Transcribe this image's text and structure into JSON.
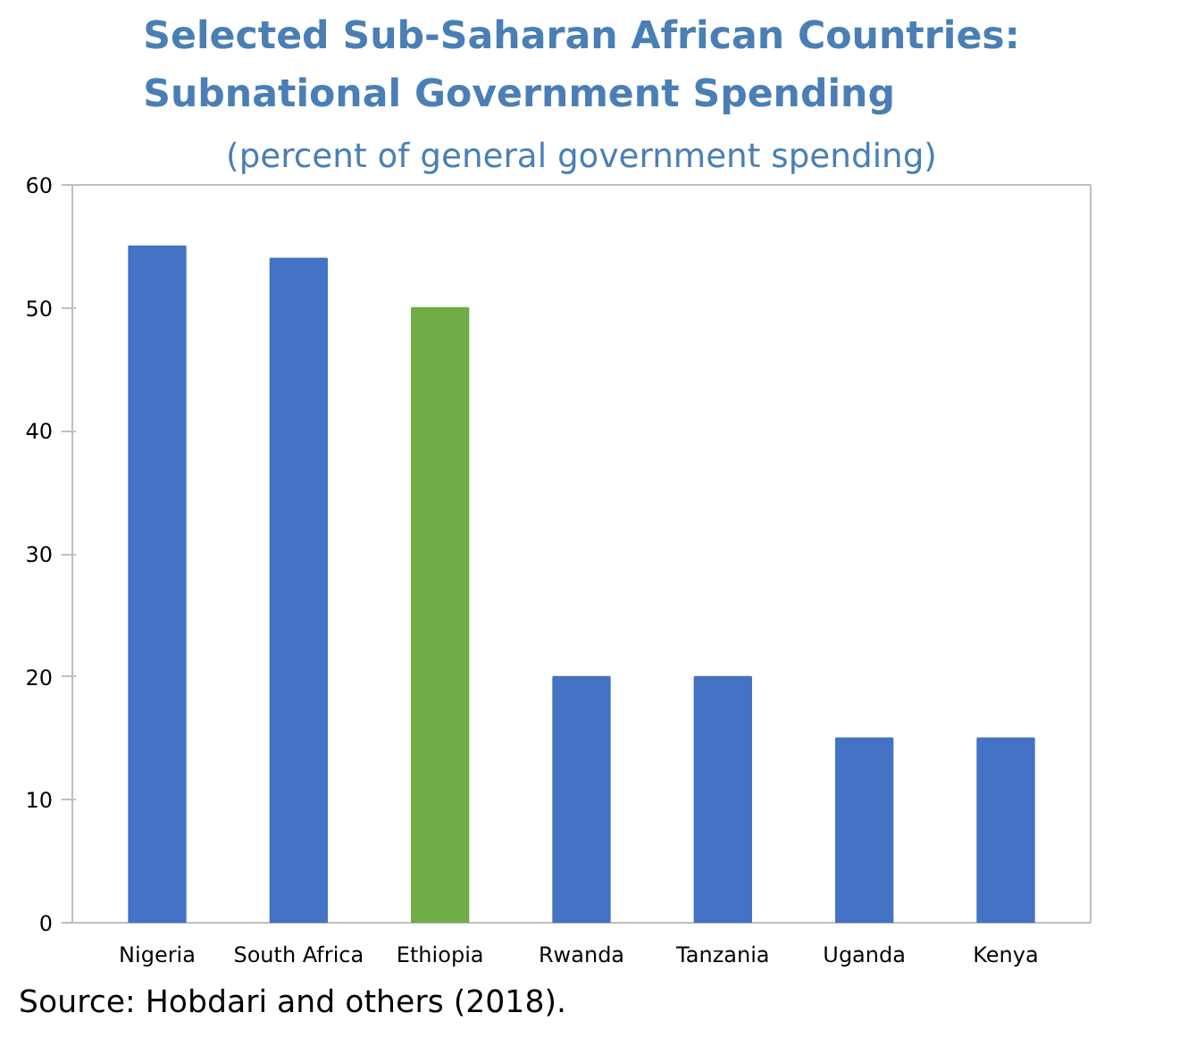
{
  "chart_data": {
    "type": "bar",
    "title": "Selected Sub-Saharan African Countries:\nSubnational Government Spending",
    "subtitle": "(percent of general government spending)",
    "categories": [
      "Nigeria",
      "South Africa",
      "Ethiopia",
      "Rwanda",
      "Tanzania",
      "Uganda",
      "Kenya"
    ],
    "values": [
      55,
      54,
      50,
      20,
      20,
      15,
      15
    ],
    "colors": [
      "#4472c4",
      "#4472c4",
      "#70ad47",
      "#4472c4",
      "#4472c4",
      "#4472c4",
      "#4472c4"
    ],
    "ylim": [
      0,
      60
    ],
    "yticks": [
      0,
      10,
      20,
      30,
      40,
      50,
      60
    ],
    "grid": false,
    "annotations": [
      "Source: Hobdari and others (2018)."
    ]
  }
}
